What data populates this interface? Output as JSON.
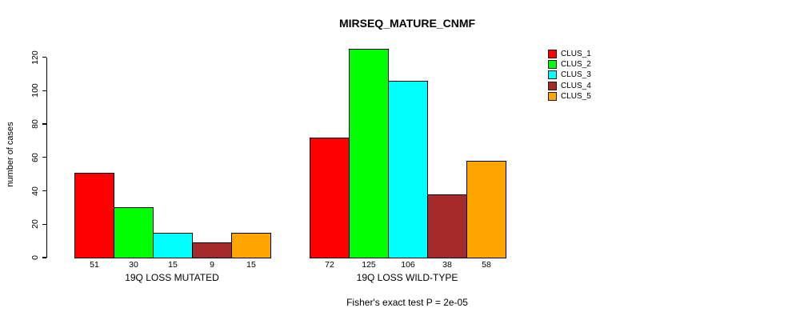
{
  "chart_data": {
    "type": "bar",
    "title": "MIRSEQ_MATURE_CNMF",
    "xlabel": "",
    "ylabel": "number of cases",
    "categories": [
      "19Q LOSS MUTATED",
      "19Q LOSS WILD-TYPE"
    ],
    "series": [
      {
        "name": "CLUS_1",
        "color": "#ff0000",
        "values": [
          51,
          72
        ]
      },
      {
        "name": "CLUS_2",
        "color": "#00ff00",
        "values": [
          30,
          125
        ]
      },
      {
        "name": "CLUS_3",
        "color": "#00ffff",
        "values": [
          15,
          106
        ]
      },
      {
        "name": "CLUS_4",
        "color": "#a52a2a",
        "values": [
          9,
          38
        ]
      },
      {
        "name": "CLUS_5",
        "color": "#ffa500",
        "values": [
          15,
          58
        ]
      }
    ],
    "y_ticks": [
      0,
      20,
      40,
      60,
      80,
      100,
      120
    ],
    "ylim": [
      0,
      125
    ],
    "grid": false,
    "bar_value_labels_shown": true,
    "legend_position": "top-right",
    "annotation": "Fisher's exact test P = 2e-05"
  },
  "colors": {
    "background": "#ffffff",
    "axis": "#000000",
    "text": "#000000",
    "bar_border": "#000000"
  }
}
